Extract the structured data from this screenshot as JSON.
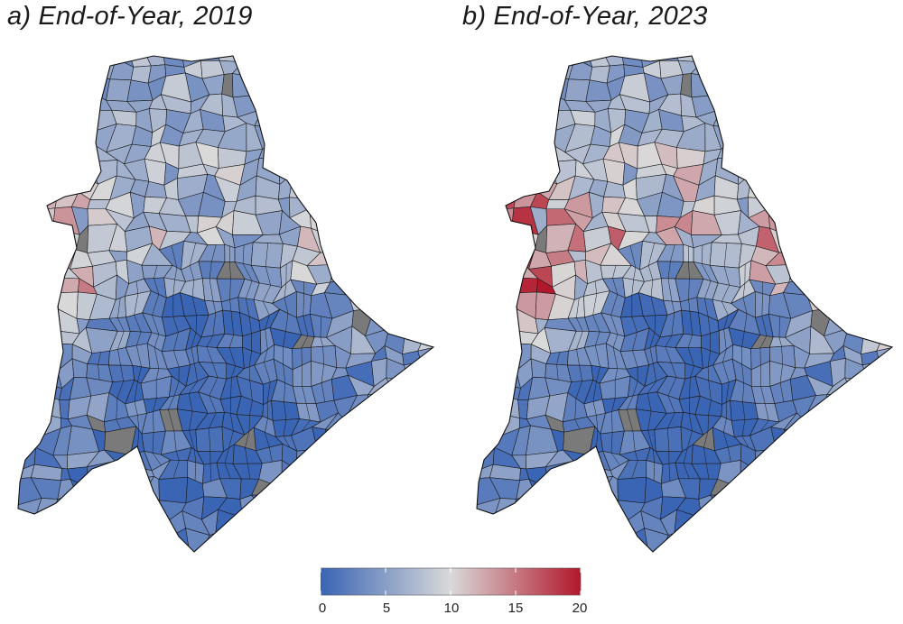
{
  "panels": [
    {
      "title": "a) End-of-Year, 2019",
      "high_areas": "low"
    },
    {
      "title": "b) End-of-Year, 2023",
      "high_areas": "high"
    }
  ],
  "legend": {
    "min": 0,
    "max": 20,
    "ticks": [
      "0",
      "5",
      "10",
      "15",
      "20"
    ],
    "colors": {
      "low": "#3a64b4",
      "mid": "#d9d9d9",
      "high": "#b2182b",
      "missing": "#7a7a7a"
    }
  }
}
